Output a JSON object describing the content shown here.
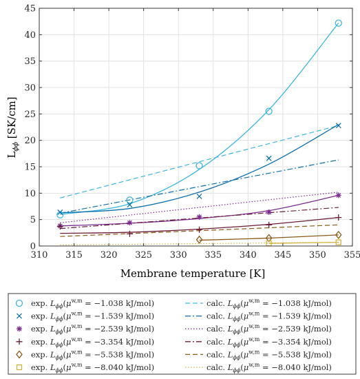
{
  "chart_data": {
    "type": "scatter",
    "xlabel": "Membrane temperature [K]",
    "ylabel": "L",
    "ylabel_sub": "ϕϕ",
    "ylabel_unit": " [SK/cm]",
    "xlim": [
      310,
      355
    ],
    "ylim": [
      0,
      45
    ],
    "xticks": [
      310,
      315,
      320,
      325,
      330,
      335,
      340,
      345,
      350,
      355
    ],
    "yticks": [
      0,
      5,
      10,
      15,
      20,
      25,
      30,
      35,
      40,
      45
    ],
    "grid": true,
    "legend_position": "below",
    "series": [
      {
        "mu": "−1.038",
        "color": "#3ab6e2",
        "marker": "circle",
        "exp_x": [
          313,
          323,
          333,
          343,
          353
        ],
        "exp_y": [
          5.9,
          8.7,
          15.2,
          25.5,
          42.2
        ],
        "fit_y": [
          6.0,
          8.0,
          14.5,
          25.8,
          42.2
        ],
        "calc_dash": "dashed",
        "calc_y": [
          9.1,
          22.8
        ]
      },
      {
        "mu": "−1.539",
        "color": "#0d6fad",
        "marker": "x",
        "exp_x": [
          313,
          323,
          333,
          343,
          353
        ],
        "exp_y": [
          6.4,
          7.8,
          9.4,
          16.6,
          22.8
        ],
        "fit_y": [
          6.3,
          7.1,
          10.2,
          15.5,
          23.0
        ],
        "calc_dash": "dashdot",
        "calc_y": [
          6.2,
          16.3
        ]
      },
      {
        "mu": "−2.539",
        "color": "#7b2c91",
        "marker": "asterisk",
        "exp_x": [
          313,
          323,
          333,
          343,
          353
        ],
        "exp_y": [
          3.8,
          4.4,
          5.5,
          6.4,
          9.6
        ],
        "fit_y": [
          3.8,
          4.3,
          5.2,
          6.7,
          9.6
        ],
        "calc_dash": "dotted",
        "calc_y": [
          4.4,
          10.2
        ]
      },
      {
        "mu": "−3.354",
        "color": "#6b1b33",
        "marker": "plus",
        "exp_x": [
          313,
          323,
          333,
          343,
          353
        ],
        "exp_y": [
          3.7,
          2.3,
          3.1,
          4.0,
          5.4
        ],
        "fit_y": [
          2.4,
          2.6,
          3.2,
          4.1,
          5.4
        ],
        "calc_dash": "dashdot",
        "calc_y": [
          3.3,
          7.3
        ]
      },
      {
        "mu": "−5.538",
        "color": "#8b5a16",
        "marker": "diamond",
        "exp_x": [
          333,
          343,
          353
        ],
        "exp_y": [
          1.2,
          1.5,
          2.1
        ],
        "fit_y": [
          1.1,
          1.5,
          2.1
        ],
        "calc_dash": "dashed",
        "calc_y": [
          1.8,
          4.0
        ]
      },
      {
        "mu": "−8.040",
        "color": "#d2b23e",
        "marker": "square",
        "exp_x": [
          343,
          353
        ],
        "exp_y": [
          0.5,
          0.7
        ],
        "fit_y": [
          0.5,
          0.7
        ],
        "calc_dash": "dotted",
        "calc_y": [
          0.2,
          0.7
        ]
      }
    ]
  },
  "legend": {
    "exp_prefix": "exp.",
    "calc_prefix": "calc.",
    "L_symbol": "L",
    "L_sub": "ϕϕ",
    "mu_symbol": "μ",
    "mu_sup": "w,m",
    "unit": " kJ/mol)"
  }
}
